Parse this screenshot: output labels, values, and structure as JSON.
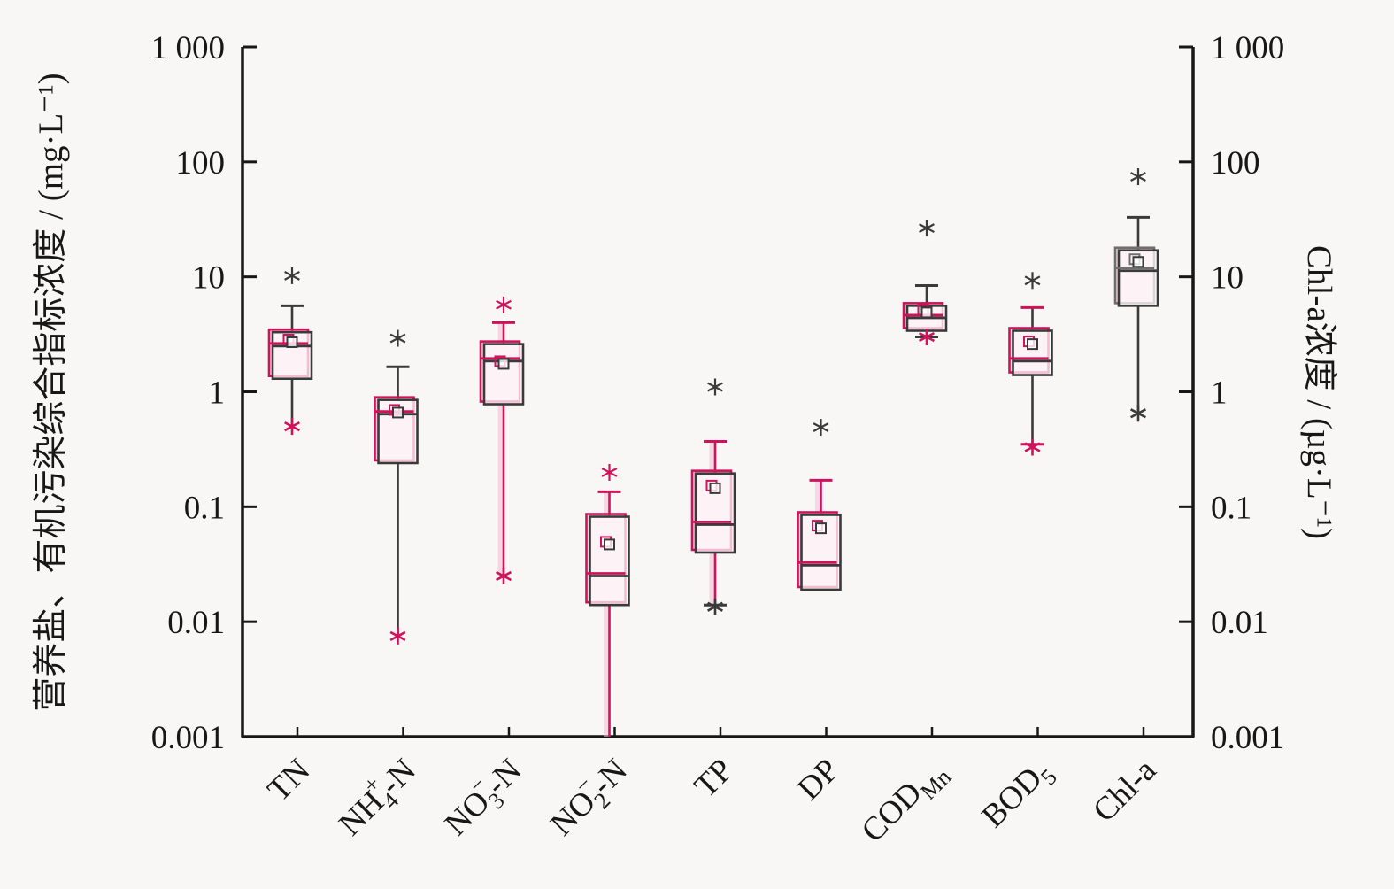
{
  "figure": {
    "background": "#f8f7f5",
    "axis_color": "#171717",
    "palette": {
      "dark": "#3a3a3a",
      "crimson": "#cf135a",
      "pink": "#f6bcd4",
      "gray_accent": "#6f6f6f"
    }
  },
  "chart_data": {
    "type": "box",
    "y_scale": "log",
    "ylim": [
      0.001,
      1000
    ],
    "grid": false,
    "left_axis_title": "营养盐、有机污染综合指标浓度 / (mg·L⁻¹)",
    "right_axis_title": "Chl-a浓度 / (µg·L⁻¹)",
    "y_ticks": [
      {
        "v": 1000,
        "label": "1 000"
      },
      {
        "v": 100,
        "label": "100"
      },
      {
        "v": 10,
        "label": "10"
      },
      {
        "v": 1,
        "label": "1"
      },
      {
        "v": 0.1,
        "label": "0.1"
      },
      {
        "v": 0.01,
        "label": "0.01"
      },
      {
        "v": 0.001,
        "label": "0.001"
      }
    ],
    "categories": [
      {
        "name": "TN",
        "axis": "left",
        "unit": "mg/L",
        "label": [
          [
            "TN",
            ""
          ]
        ],
        "stats": {
          "whisker_low": 0.5,
          "q1": 1.3,
          "median": 2.5,
          "mean": 2.7,
          "q3": 3.3,
          "whisker_high": 5.6
        },
        "cap_high": true,
        "cap_low": false,
        "outliers_above": [
          7.7
        ],
        "outliers_below": [
          0.5
        ],
        "style": {
          "accent": "crimson",
          "whisker": "dark",
          "cap_high": "dark",
          "cap_low": "dark",
          "out_high": "dark",
          "out_low": "crimson"
        }
      },
      {
        "name": "NH4+-N",
        "axis": "left",
        "unit": "mg/L",
        "label": [
          [
            "NH",
            ""
          ],
          [
            "4",
            "sub"
          ],
          [
            "+",
            "sup"
          ],
          [
            "-N",
            "base"
          ]
        ],
        "stats": {
          "whisker_low": 0.0075,
          "q1": 0.24,
          "median": 0.64,
          "mean": 0.66,
          "q3": 0.85,
          "whisker_high": 1.65
        },
        "cap_high": true,
        "cap_low": false,
        "outliers_above": [
          2.2
        ],
        "outliers_below": [
          0.0075
        ],
        "style": {
          "accent": "crimson",
          "whisker": "dark",
          "cap_high": "dark",
          "cap_low": "dark",
          "out_high": "dark",
          "out_low": "crimson"
        }
      },
      {
        "name": "NO3--N",
        "axis": "left",
        "unit": "mg/L",
        "label": [
          [
            "NO",
            ""
          ],
          [
            "3",
            "sub"
          ],
          [
            "−",
            "sup"
          ],
          [
            "-N",
            "base"
          ]
        ],
        "stats": {
          "whisker_low": 0.025,
          "q1": 0.78,
          "median": 1.85,
          "mean": 1.75,
          "q3": 2.6,
          "whisker_high": 4.0
        },
        "cap_high": true,
        "cap_low": false,
        "outliers_above": [
          4.3
        ],
        "outliers_below": [
          0.025
        ],
        "style": {
          "accent": "crimson",
          "whisker": "crimson",
          "cap_high": "crimson",
          "cap_low": "crimson",
          "out_high": "crimson",
          "out_low": "crimson"
        }
      },
      {
        "name": "NO2--N",
        "axis": "left",
        "unit": "mg/L",
        "label": [
          [
            "NO",
            ""
          ],
          [
            "2",
            "sub"
          ],
          [
            "−",
            "sup"
          ],
          [
            "-N",
            "base"
          ]
        ],
        "stats": {
          "whisker_low": 0.001,
          "q1": 0.014,
          "median": 0.025,
          "mean": 0.047,
          "q3": 0.082,
          "whisker_high": 0.135
        },
        "cap_high": true,
        "cap_low": false,
        "outliers_above": [
          0.15
        ],
        "outliers_below": [],
        "style": {
          "accent": "crimson",
          "whisker": "crimson",
          "cap_high": "crimson",
          "cap_low": "crimson",
          "out_high": "crimson",
          "out_low": "crimson"
        }
      },
      {
        "name": "TP",
        "axis": "left",
        "unit": "mg/L",
        "label": [
          [
            "TP",
            ""
          ]
        ],
        "stats": {
          "whisker_low": 0.014,
          "q1": 0.04,
          "median": 0.07,
          "mean": 0.145,
          "q3": 0.195,
          "whisker_high": 0.37
        },
        "cap_high": true,
        "cap_low": true,
        "outliers_above": [
          0.83
        ],
        "outliers_below": [
          0.0135
        ],
        "style": {
          "accent": "crimson",
          "whisker": "crimson",
          "cap_high": "crimson",
          "cap_low": "dark",
          "out_high": "dark",
          "out_low": "dark"
        }
      },
      {
        "name": "DP",
        "axis": "left",
        "unit": "mg/L",
        "label": [
          [
            "DP",
            ""
          ]
        ],
        "stats": {
          "whisker_low": 0.019,
          "q1": 0.019,
          "median": 0.031,
          "mean": 0.065,
          "q3": 0.085,
          "whisker_high": 0.17
        },
        "cap_high": true,
        "cap_low": false,
        "outliers_above": [
          0.37
        ],
        "outliers_below": [],
        "style": {
          "accent": "crimson",
          "whisker": "crimson",
          "cap_high": "crimson",
          "cap_low": "dark",
          "out_high": "dark",
          "out_low": "dark"
        }
      },
      {
        "name": "CODMn",
        "axis": "left",
        "unit": "mg/L",
        "label": [
          [
            "COD",
            ""
          ],
          [
            "Mn",
            "sub"
          ]
        ],
        "stats": {
          "whisker_low": 3.0,
          "q1": 3.4,
          "median": 4.4,
          "mean": 4.9,
          "q3": 5.6,
          "whisker_high": 8.4
        },
        "cap_high": true,
        "cap_low": true,
        "outliers_above": [
          20
        ],
        "outliers_below": [
          3.0
        ],
        "style": {
          "accent": "crimson",
          "whisker": "dark",
          "cap_high": "dark",
          "cap_low": "dark",
          "out_high": "dark",
          "out_low": "crimson"
        }
      },
      {
        "name": "BOD5",
        "axis": "left",
        "unit": "mg/L",
        "label": [
          [
            "BOD",
            ""
          ],
          [
            "5",
            "sub"
          ]
        ],
        "stats": {
          "whisker_low": 0.35,
          "q1": 1.4,
          "median": 1.85,
          "mean": 2.6,
          "q3": 3.4,
          "whisker_high": 5.4
        },
        "cap_high": true,
        "cap_low": true,
        "outliers_above": [
          7.0
        ],
        "outliers_below": [
          0.33
        ],
        "style": {
          "accent": "crimson",
          "whisker": "dark",
          "cap_high": "crimson",
          "cap_low": "crimson",
          "out_high": "dark",
          "out_low": "crimson"
        }
      },
      {
        "name": "Chl-a",
        "axis": "right",
        "unit": "µg/L",
        "label": [
          [
            "Chl-a",
            ""
          ]
        ],
        "stats": {
          "whisker_low": 0.65,
          "q1": 5.6,
          "median": 11.3,
          "mean": 13.5,
          "q3": 17,
          "whisker_high": 33
        },
        "cap_high": true,
        "cap_low": false,
        "outliers_above": [
          56
        ],
        "outliers_below": [
          0.65
        ],
        "style": {
          "accent": "gray_accent",
          "whisker": "dark",
          "cap_high": "dark",
          "cap_low": "dark",
          "out_high": "dark",
          "out_low": "dark"
        }
      }
    ]
  }
}
